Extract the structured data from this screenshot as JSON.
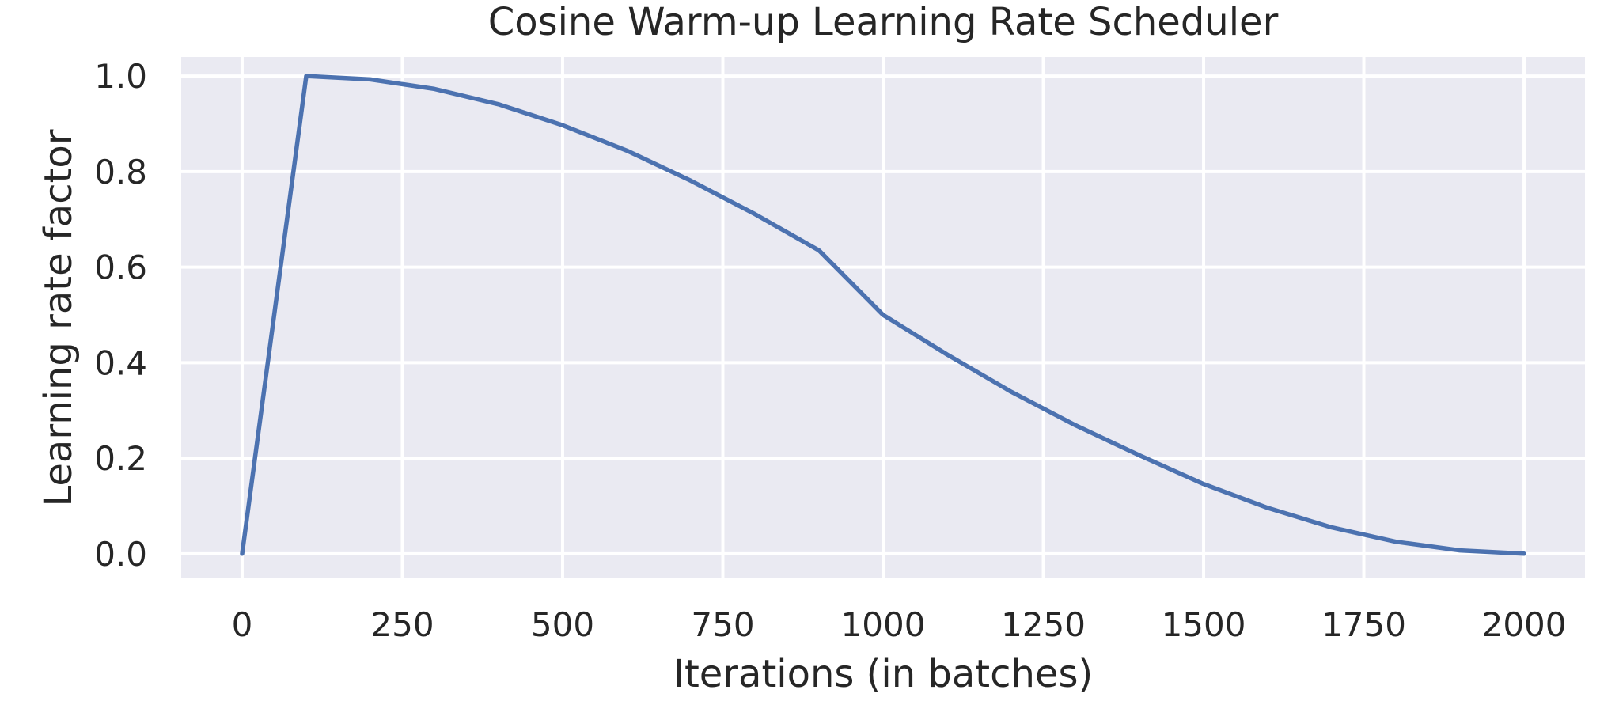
{
  "chart_data": {
    "type": "line",
    "title": "Cosine Warm-up Learning Rate Scheduler",
    "xlabel": "Iterations (in batches)",
    "ylabel": "Learning rate factor",
    "xlim": [
      -95,
      2095
    ],
    "ylim": [
      -0.05,
      1.04
    ],
    "x_ticks": [
      0,
      250,
      500,
      750,
      1000,
      1250,
      1500,
      1750,
      2000
    ],
    "x_tick_labels": [
      "0",
      "250",
      "500",
      "750",
      "1000",
      "1250",
      "1500",
      "1750",
      "2000"
    ],
    "y_ticks": [
      0.0,
      0.2,
      0.4,
      0.6,
      0.8,
      1.0
    ],
    "y_tick_labels": [
      "0.0",
      "0.2",
      "0.4",
      "0.6",
      "0.8",
      "1.0"
    ],
    "grid": true,
    "legend": "none",
    "series": [
      {
        "color": "#4c72b0",
        "x": [
          0,
          100,
          200,
          300,
          400,
          500,
          600,
          700,
          800,
          900,
          1000,
          1100,
          1200,
          1300,
          1400,
          1500,
          1600,
          1700,
          1800,
          1900,
          2000
        ],
        "y": [
          0.0,
          1.0,
          0.993,
          0.973,
          0.941,
          0.897,
          0.844,
          0.781,
          0.711,
          0.635,
          0.5,
          0.417,
          0.339,
          0.269,
          0.206,
          0.146,
          0.096,
          0.055,
          0.025,
          0.007,
          0.0
        ]
      }
    ],
    "colors": {
      "plot_background": "#eaeaf2",
      "grid": "#ffffff",
      "text": "#262626"
    }
  }
}
